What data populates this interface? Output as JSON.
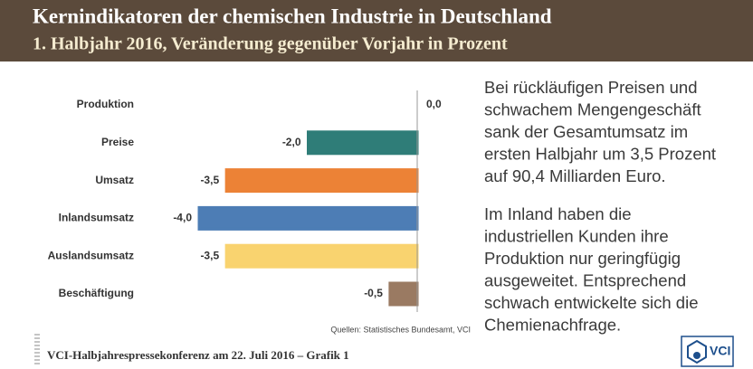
{
  "chart_data": {
    "type": "bar",
    "orientation": "horizontal",
    "title": "Kernindikatoren der chemischen Industrie in Deutschland",
    "subtitle": "1. Halbjahr 2016, Veränderung gegenüber Vorjahr in Prozent",
    "categories": [
      "Produktion",
      "Preise",
      "Umsatz",
      "Inlandsumsatz",
      "Auslandsumsatz",
      "Beschäftigung"
    ],
    "values": [
      0.0,
      -2.0,
      -3.5,
      -4.0,
      -3.5,
      -0.5
    ],
    "value_labels": [
      "0,0",
      "-2,0",
      "-3,5",
      "-4,0",
      "-3,5",
      "-0,5"
    ],
    "colors": [
      "#9b3a4f",
      "#2f7d78",
      "#ec8236",
      "#4d7db5",
      "#f9d36f",
      "#9a7a62"
    ],
    "xlim": [
      -4.0,
      0.0
    ],
    "source": "Quellen: Statistisches Bundesamt, VCI"
  },
  "text": {
    "paragraphs": [
      [
        "Bei rückläufigen Preisen und",
        "schwachem Mengengeschäft",
        "sank der Gesamtumsatz im",
        "ersten Halbjahr um 3,5 Prozent",
        "auf 90,4 Milliarden Euro."
      ],
      [
        "Im Inland haben die",
        "industriellen Kunden ihre",
        "Produktion nur geringfügig",
        "ausgeweitet. Entsprechend",
        "schwach entwickelte sich die",
        "Chemienachfrage."
      ]
    ]
  },
  "footer": {
    "text": "VCI-Halbjahrespressekonferenz am 22. Juli 2016 – Grafik 1",
    "logo": "VCI"
  }
}
